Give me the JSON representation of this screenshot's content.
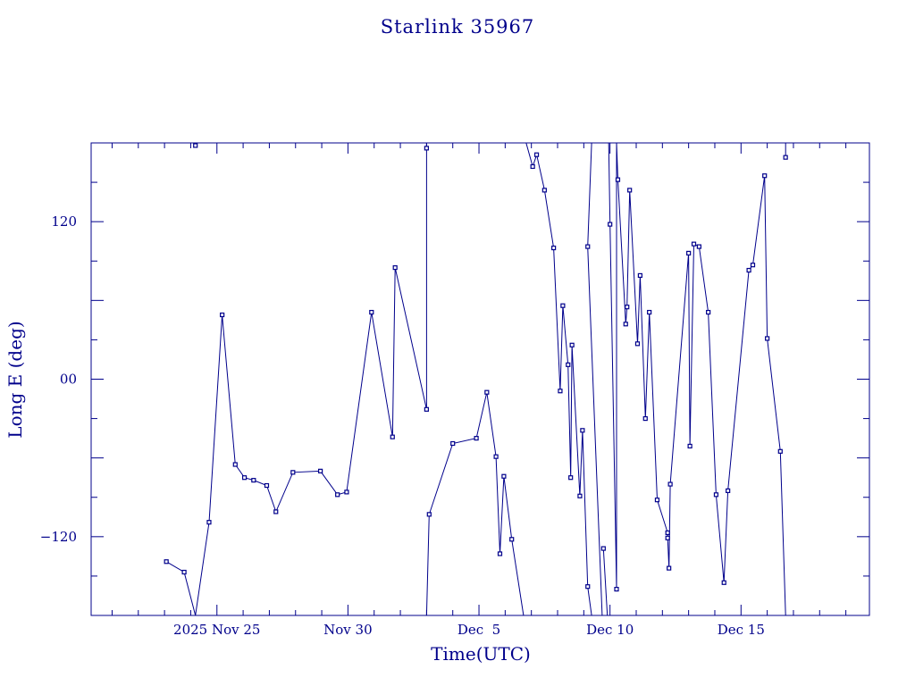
{
  "chart_data": {
    "type": "line",
    "title": "Starlink 35967",
    "xlabel": "Time(UTC)",
    "ylabel": "Long E (deg)",
    "x_unit": "days (Nov 25 = 25)",
    "xlim": [
      20.2,
      49.9
    ],
    "ylim": [
      -180,
      180
    ],
    "x_ticks": [
      {
        "x": 25,
        "label": "2025 Nov 25"
      },
      {
        "x": 30,
        "label": "Nov 30"
      },
      {
        "x": 35,
        "label": "Dec  5"
      },
      {
        "x": 40,
        "label": "Dec 10"
      },
      {
        "x": 45,
        "label": "Dec 15"
      }
    ],
    "y_ticks": [
      {
        "y": 120,
        "label": "120"
      },
      {
        "y": 0,
        "label": "00"
      },
      {
        "y": -120,
        "label": "−120"
      }
    ],
    "series": [
      {
        "name": "",
        "segments": [
          [
            [
              23.07,
              -139
            ],
            [
              23.75,
              -147
            ],
            [
              24.18,
              -180
            ]
          ],
          [
            [
              24.18,
              178
            ]
          ],
          [
            [
              24.18,
              -180
            ],
            [
              24.7,
              -109
            ],
            [
              25.2,
              49
            ],
            [
              25.7,
              -65
            ],
            [
              26.05,
              -75
            ],
            [
              26.4,
              -77
            ],
            [
              26.9,
              -81
            ],
            [
              27.25,
              -101
            ],
            [
              27.9,
              -71
            ],
            [
              28.95,
              -70
            ],
            [
              29.6,
              -88
            ],
            [
              29.95,
              -86
            ],
            [
              30.9,
              51
            ],
            [
              31.7,
              -44
            ],
            [
              31.8,
              85
            ],
            [
              33.0,
              -23
            ],
            [
              33.0,
              180
            ]
          ],
          [
            [
              33.0,
              176
            ]
          ],
          [
            [
              33.0,
              -180
            ],
            [
              33.1,
              -103
            ],
            [
              34.0,
              -49
            ],
            [
              34.9,
              -45
            ],
            [
              35.3,
              -10
            ],
            [
              35.65,
              -59
            ],
            [
              35.8,
              -133
            ],
            [
              35.95,
              -74
            ],
            [
              36.25,
              -122
            ],
            [
              36.7,
              -180
            ]
          ],
          [
            [
              36.8,
              180
            ],
            [
              37.05,
              162
            ],
            [
              37.2,
              171
            ],
            [
              37.5,
              144
            ],
            [
              37.85,
              100
            ],
            [
              38.1,
              -9
            ],
            [
              38.2,
              56
            ],
            [
              38.4,
              11
            ],
            [
              38.5,
              -75
            ],
            [
              38.55,
              26
            ],
            [
              38.85,
              -89
            ],
            [
              38.95,
              -39
            ],
            [
              39.15,
              -158
            ],
            [
              39.3,
              -180
            ]
          ],
          [
            [
              39.3,
              180
            ],
            [
              39.15,
              101
            ],
            [
              39.7,
              -180
            ]
          ],
          [
            [
              39.75,
              -129
            ],
            [
              39.9,
              -180
            ]
          ],
          [
            [
              39.95,
              180
            ],
            [
              40.0,
              118
            ],
            [
              40.25,
              -160
            ],
            [
              40.25,
              180
            ],
            [
              40.3,
              152
            ],
            [
              40.6,
              42
            ],
            [
              40.65,
              55
            ],
            [
              40.75,
              144
            ],
            [
              41.05,
              27
            ],
            [
              41.15,
              79
            ],
            [
              41.35,
              -30
            ],
            [
              41.5,
              51
            ],
            [
              41.8,
              -92
            ],
            [
              42.2,
              -117
            ],
            [
              42.2,
              -121
            ],
            [
              42.25,
              -144
            ],
            [
              42.3,
              -80
            ],
            [
              43.0,
              96
            ],
            [
              43.05,
              -51
            ],
            [
              43.2,
              103
            ],
            [
              43.4,
              101
            ],
            [
              43.75,
              51
            ],
            [
              44.05,
              -88
            ],
            [
              44.35,
              -155
            ],
            [
              44.5,
              -85
            ],
            [
              45.3,
              83
            ],
            [
              45.45,
              87
            ],
            [
              45.9,
              155
            ],
            [
              46.0,
              31
            ],
            [
              46.5,
              -55
            ],
            [
              46.7,
              -180
            ]
          ],
          [
            [
              46.7,
              180
            ],
            [
              46.7,
              169
            ]
          ]
        ]
      }
    ],
    "grid": false,
    "legend": "none"
  }
}
